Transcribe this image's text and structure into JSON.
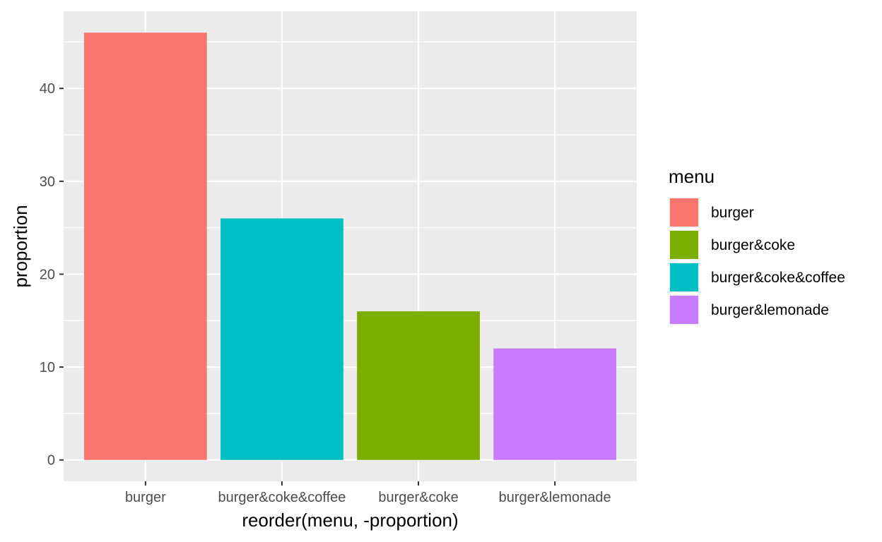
{
  "chart_data": {
    "type": "bar",
    "categories": [
      "burger",
      "burger&coke&coffee",
      "burger&coke",
      "burger&lemonade"
    ],
    "values": [
      46,
      26,
      16,
      12
    ],
    "colors": [
      "#F8766D",
      "#00BFC4",
      "#7CAE00",
      "#C77CFF"
    ],
    "title": "",
    "xlabel": "reorder(menu, -proportion)",
    "ylabel": "proportion",
    "ylim": [
      -2.3,
      48.3
    ],
    "yticks": [
      0,
      10,
      20,
      30,
      40
    ],
    "grid": true,
    "panel_background": "#EBEBEB",
    "gridline_color": "#FFFFFF",
    "legend": {
      "title": "menu",
      "placement": "right",
      "items": [
        {
          "label": "burger",
          "color": "#F8766D"
        },
        {
          "label": "burger&coke",
          "color": "#7CAE00"
        },
        {
          "label": "burger&coke&coffee",
          "color": "#00BFC4"
        },
        {
          "label": "burger&lemonade",
          "color": "#C77CFF"
        }
      ]
    }
  }
}
